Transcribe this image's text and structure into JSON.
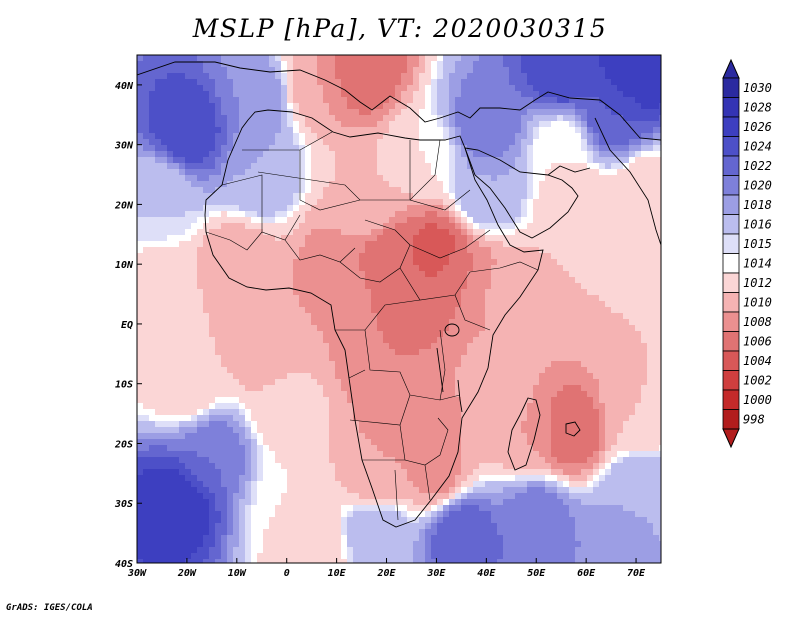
{
  "title": "MSLP [hPa], VT: 2020030315",
  "credit": "GrADS: IGES/COLA",
  "map": {
    "lon_range": [
      -30,
      75
    ],
    "lat_range": [
      -40,
      45
    ],
    "lon_ticks": [
      {
        "value": -30,
        "label": "30W"
      },
      {
        "value": -20,
        "label": "20W"
      },
      {
        "value": -10,
        "label": "10W"
      },
      {
        "value": 0,
        "label": "0"
      },
      {
        "value": 10,
        "label": "10E"
      },
      {
        "value": 20,
        "label": "20E"
      },
      {
        "value": 30,
        "label": "30E"
      },
      {
        "value": 40,
        "label": "40E"
      },
      {
        "value": 50,
        "label": "50E"
      },
      {
        "value": 60,
        "label": "60E"
      },
      {
        "value": 70,
        "label": "70E"
      }
    ],
    "lat_ticks": [
      {
        "value": 40,
        "label": "40N"
      },
      {
        "value": 30,
        "label": "30N"
      },
      {
        "value": 20,
        "label": "20N"
      },
      {
        "value": 10,
        "label": "10N"
      },
      {
        "value": 0,
        "label": "EQ"
      },
      {
        "value": -10,
        "label": "10S"
      },
      {
        "value": -20,
        "label": "20S"
      },
      {
        "value": -30,
        "label": "30S"
      },
      {
        "value": -40,
        "label": "40S"
      }
    ],
    "pressure_centers": [
      {
        "lon": -20,
        "lat": 32,
        "hpa": 1026
      },
      {
        "lon": -5,
        "lat": 38,
        "hpa": 1020
      },
      {
        "lon": 15,
        "lat": 43,
        "hpa": 1006
      },
      {
        "lon": 5,
        "lat": 40,
        "hpa": 1010
      },
      {
        "lon": 40,
        "lat": 33,
        "hpa": 1022
      },
      {
        "lon": 55,
        "lat": 42,
        "hpa": 1026
      },
      {
        "lon": 70,
        "lat": 42,
        "hpa": 1028
      },
      {
        "lon": 65,
        "lat": 35,
        "hpa": 1024
      },
      {
        "lon": 55,
        "lat": 30,
        "hpa": 1014
      },
      {
        "lon": 58,
        "lat": 21,
        "hpa": 1012
      },
      {
        "lon": 72,
        "lat": 22,
        "hpa": 1012
      },
      {
        "lon": 40,
        "lat": 22,
        "hpa": 1018
      },
      {
        "lon": 28,
        "lat": 28,
        "hpa": 1014
      },
      {
        "lon": 15,
        "lat": 20,
        "hpa": 1012
      },
      {
        "lon": -5,
        "lat": 25,
        "hpa": 1018
      },
      {
        "lon": -25,
        "lat": 22,
        "hpa": 1016
      },
      {
        "lon": -25,
        "lat": 5,
        "hpa": 1013
      },
      {
        "lon": -10,
        "lat": 10,
        "hpa": 1010
      },
      {
        "lon": 10,
        "lat": 10,
        "hpa": 1009
      },
      {
        "lon": 20,
        "lat": 10,
        "hpa": 1006
      },
      {
        "lon": 30,
        "lat": 12,
        "hpa": 1005
      },
      {
        "lon": 25,
        "lat": 4,
        "hpa": 1007
      },
      {
        "lon": 35,
        "lat": 8,
        "hpa": 1008
      },
      {
        "lon": 45,
        "lat": 5,
        "hpa": 1011
      },
      {
        "lon": 65,
        "lat": 5,
        "hpa": 1012
      },
      {
        "lon": 10,
        "lat": 5,
        "hpa": 1010
      },
      {
        "lon": 20,
        "lat": -5,
        "hpa": 1008
      },
      {
        "lon": 25,
        "lat": -15,
        "hpa": 1008
      },
      {
        "lon": 30,
        "lat": -25,
        "hpa": 1009
      },
      {
        "lon": 18,
        "lat": -25,
        "hpa": 1010
      },
      {
        "lon": 57,
        "lat": -18,
        "hpa": 1006
      },
      {
        "lon": 48,
        "lat": -18,
        "hpa": 1010
      },
      {
        "lon": 42,
        "lat": -10,
        "hpa": 1011
      },
      {
        "lon": -5,
        "lat": -5,
        "hpa": 1011
      },
      {
        "lon": -20,
        "lat": -10,
        "hpa": 1012
      },
      {
        "lon": 0,
        "lat": -15,
        "hpa": 1013
      },
      {
        "lon": -22,
        "lat": -30,
        "hpa": 1028
      },
      {
        "lon": -15,
        "lat": -22,
        "hpa": 1022
      },
      {
        "lon": 0,
        "lat": -30,
        "hpa": 1014
      },
      {
        "lon": 5,
        "lat": -38,
        "hpa": 1012
      },
      {
        "lon": 35,
        "lat": -35,
        "hpa": 1024
      },
      {
        "lon": 50,
        "lat": -33,
        "hpa": 1022
      },
      {
        "lon": 62,
        "lat": -38,
        "hpa": 1020
      },
      {
        "lon": 70,
        "lat": -28,
        "hpa": 1018
      },
      {
        "lon": 70,
        "lat": -15,
        "hpa": 1012
      },
      {
        "lon": 18,
        "lat": -35,
        "hpa": 1018
      }
    ]
  },
  "colorbar": {
    "levels": [
      "1030",
      "1028",
      "1026",
      "1024",
      "1022",
      "1020",
      "1018",
      "1016",
      "1015",
      "1014",
      "1012",
      "1010",
      "1008",
      "1006",
      "1004",
      "1002",
      "1000",
      "998"
    ],
    "colors": [
      "#2b2aa0",
      "#3434b4",
      "#3d3fc0",
      "#4d50c8",
      "#6466d0",
      "#7e80da",
      "#9c9ee4",
      "#bbbdee",
      "#dedff8",
      "#ffffff",
      "#fbd6d6",
      "#f5b3b3",
      "#eb9090",
      "#e07373",
      "#d85858",
      "#cf3f3f",
      "#c42a2a",
      "#b21d1d"
    ]
  },
  "annotation": "GrADS: IGES/COLA"
}
